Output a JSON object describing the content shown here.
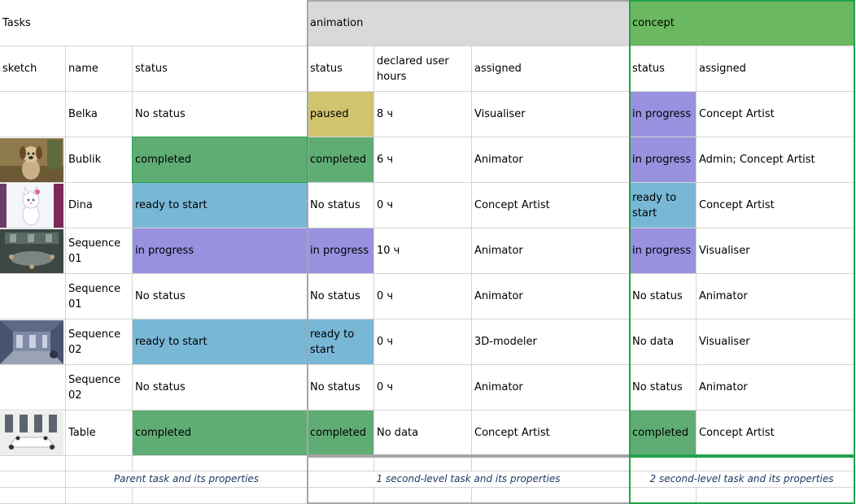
{
  "colors": {
    "header_anim": "#d9d9d9",
    "header_concept": "#6ab85f",
    "paused": "#d1c46e",
    "completed": "#5fad74",
    "ready": "#78b7d6",
    "in_progress": "#9891e0",
    "anim_frame": "#a6a6a6",
    "concept_frame": "#21a24a"
  },
  "groups": {
    "tasks": "Tasks",
    "animation": "animation",
    "concept": "concept"
  },
  "headers": {
    "sketch": "sketch",
    "name": "name",
    "status": "status",
    "anim_status": "status",
    "anim_hours": "declared user hours",
    "anim_assigned": "assigned",
    "concept_status": "status",
    "concept_assigned": "assigned"
  },
  "rows": [
    {
      "thumb": "none",
      "name": "Belka",
      "status": "No status",
      "status_color": "",
      "anim_status": "paused",
      "anim_color": "paused",
      "hours": "8 ч",
      "anim_assigned": "Visualiser",
      "concept_status": "in progress",
      "concept_color": "in_progress",
      "concept_assigned": "Concept Artist"
    },
    {
      "thumb": "dog-icon",
      "name": "Bublik",
      "status": "completed",
      "status_color": "completed",
      "anim_status": "completed",
      "anim_color": "completed",
      "hours": "6 ч",
      "anim_assigned": "Animator",
      "concept_status": "in progress",
      "concept_color": "in_progress",
      "concept_assigned": "Admin; Concept Artist"
    },
    {
      "thumb": "cat-icon",
      "name": "Dina",
      "status": "ready to start",
      "status_color": "ready",
      "anim_status": "No status",
      "anim_color": "",
      "hours": "0 ч",
      "anim_assigned": "Concept Artist",
      "concept_status": "ready to start",
      "concept_color": "ready",
      "concept_assigned": "Concept Artist"
    },
    {
      "thumb": "room-icon",
      "name": "Sequence 01",
      "status": "in progress",
      "status_color": "in_progress",
      "anim_status": "in progress",
      "anim_color": "in_progress",
      "hours": "10 ч",
      "anim_assigned": "Animator",
      "concept_status": "in progress",
      "concept_color": "in_progress",
      "concept_assigned": "Visualiser"
    },
    {
      "thumb": "none",
      "name": "Sequence 01",
      "status": "No status",
      "status_color": "",
      "anim_status": "No status",
      "anim_color": "",
      "hours": "0 ч",
      "anim_assigned": "Animator",
      "concept_status": "No status",
      "concept_color": "",
      "concept_assigned": "Animator"
    },
    {
      "thumb": "hall-icon",
      "name": "Sequence 02",
      "status": "ready to start",
      "status_color": "ready",
      "anim_status": "ready to start",
      "anim_color": "ready",
      "hours": "0 ч",
      "anim_assigned": "3D-modeler",
      "concept_status": "No data",
      "concept_color": "",
      "concept_assigned": "Visualiser"
    },
    {
      "thumb": "none",
      "name": "Sequence 02",
      "status": "No status",
      "status_color": "",
      "anim_status": "No status",
      "anim_color": "",
      "hours": "0 ч",
      "anim_assigned": "Animator",
      "concept_status": "No status",
      "concept_color": "",
      "concept_assigned": "Animator"
    },
    {
      "thumb": "table-icon",
      "name": "Table",
      "status": "completed",
      "status_color": "completed",
      "anim_status": "completed",
      "anim_color": "completed",
      "hours": "No data",
      "anim_assigned": "Concept Artist",
      "concept_status": "completed",
      "concept_color": "completed",
      "concept_assigned": "Concept Artist"
    }
  ],
  "footers": {
    "parent": "Parent task and its properties",
    "first": "1 second-level task and its properties",
    "second": "2 second-level task and its properties"
  }
}
